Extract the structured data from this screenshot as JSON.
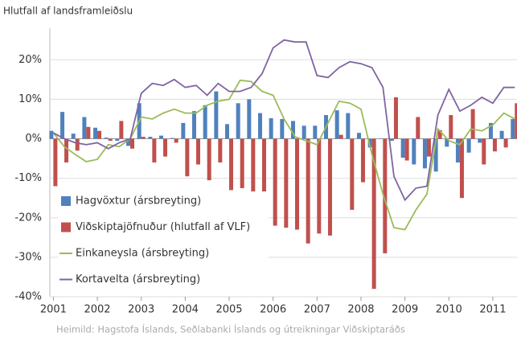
{
  "chart_data": {
    "type": "bar-line",
    "title": "Hlutfall af landsframleiðslu",
    "source": "Heimild: Hagstofa Íslands, Seðlabanki Íslands og útreikningar Viðskiptaráðs",
    "x": [
      2001,
      2001.25,
      2001.5,
      2001.75,
      2002,
      2002.25,
      2002.5,
      2002.75,
      2003,
      2003.25,
      2003.5,
      2003.75,
      2004,
      2004.25,
      2004.5,
      2004.75,
      2005,
      2005.25,
      2005.5,
      2005.75,
      2006,
      2006.25,
      2006.5,
      2006.75,
      2007,
      2007.25,
      2007.5,
      2007.75,
      2008,
      2008.25,
      2008.5,
      2008.75,
      2009,
      2009.25,
      2009.5,
      2009.75,
      2010,
      2010.25,
      2010.5,
      2010.75,
      2011,
      2011.25,
      2011.5
    ],
    "xlim": [
      2000.92,
      2011.55
    ],
    "xticks": [
      2001,
      2002,
      2003,
      2004,
      2005,
      2006,
      2007,
      2008,
      2009,
      2010,
      2011
    ],
    "ylim": [
      -40,
      28
    ],
    "yticks": [
      {
        "value": -40,
        "label": "-40%"
      },
      {
        "value": -30,
        "label": "-30%"
      },
      {
        "value": -20,
        "label": "-20%"
      },
      {
        "value": -10,
        "label": "-10%"
      },
      {
        "value": 0,
        "label": "0%"
      },
      {
        "value": 10,
        "label": "10%"
      },
      {
        "value": 20,
        "label": "20%"
      }
    ],
    "grid": true,
    "legend": "lower left",
    "series": [
      {
        "name": "Hagvöxtur (ársbreyting)",
        "kind": "bar",
        "color": "#4f81bd",
        "values": [
          2,
          6.8,
          1.3,
          5.5,
          2.8,
          0.3,
          -0.5,
          -1.8,
          9,
          0.5,
          0.8,
          0.2,
          4,
          7,
          8.5,
          12,
          3.7,
          9,
          10,
          6.5,
          5.2,
          5,
          4.5,
          3.3,
          3.3,
          6,
          7.2,
          6.5,
          1.5,
          -2.2,
          0,
          -0.5,
          -4.8,
          -6.5,
          -7.5,
          -8.3,
          -2,
          -6,
          -3.5,
          -1,
          4,
          2,
          5
        ]
      },
      {
        "name": "Viðskiptajöfnuður (hlutfall af VLF)",
        "kind": "bar",
        "color": "#c0504d",
        "values": [
          -12,
          -6,
          -3,
          3,
          2,
          -0.5,
          4.5,
          -2.5,
          0.5,
          -6,
          -4.5,
          -1,
          -9.5,
          -6.5,
          -10.5,
          -6,
          -13,
          -12.5,
          -15.5,
          -23,
          -22,
          -22.5,
          -23,
          -26.5,
          -24,
          -24.5,
          1,
          -18,
          -11,
          -38,
          -29,
          10.5,
          -5.5,
          5.5,
          -4.5,
          2.2,
          6,
          -15,
          7.5,
          -6.5,
          -3.2,
          -2.2,
          9
        ]
      },
      {
        "name": "Einkaneysla (ársbreyting)",
        "kind": "line",
        "color": "#9bbb59",
        "values": [
          1.5,
          -2,
          -4,
          -5.8,
          -5.2,
          -1.5,
          -2,
          0,
          5.5,
          5,
          6.5,
          7.5,
          6.5,
          6.5,
          8.5,
          9.5,
          10,
          14.8,
          14.5,
          12,
          11,
          5,
          0.5,
          -0.5,
          -1.5,
          4,
          9.5,
          9,
          7.5,
          -4,
          -14,
          -22.5,
          -23,
          -18,
          -14,
          2.5,
          -0.5,
          -1.5,
          2.5,
          2,
          3.5,
          6.5,
          5
        ]
      },
      {
        "name": "Kortavelta (ársbreyting)",
        "kind": "line",
        "color": "#8064a2",
        "values": [
          1.5,
          0,
          -1,
          -1.5,
          -1,
          -2.5,
          -1,
          0,
          11.5,
          14,
          13.5,
          15,
          13,
          13.5,
          11,
          14,
          12,
          12,
          13,
          16.5,
          23,
          25,
          24.5,
          24.5,
          16,
          15.5,
          18,
          19.5,
          19,
          18,
          13,
          -9.5,
          -15.5,
          -12.5,
          -12,
          6,
          12.5,
          7,
          8.5,
          10.5,
          9,
          13,
          13
        ]
      }
    ]
  }
}
